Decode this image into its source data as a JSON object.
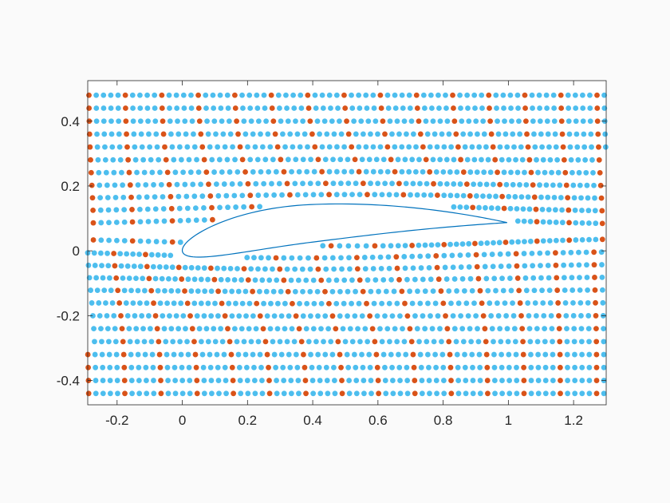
{
  "chart_data": {
    "type": "scatter",
    "title": "",
    "xlabel": "",
    "ylabel": "",
    "xlim": [
      -0.29,
      1.3
    ],
    "ylim": [
      -0.475,
      0.525
    ],
    "x_ticks": [
      -0.2,
      0,
      0.2,
      0.4,
      0.6,
      0.8,
      1,
      1.2
    ],
    "x_tick_labels": [
      "-0.2",
      "0",
      "0.2",
      "0.4",
      "0.6",
      "0.8",
      "1",
      "1.2"
    ],
    "y_ticks": [
      -0.4,
      -0.2,
      0,
      0.2,
      0.4
    ],
    "y_tick_labels": [
      "-0.4",
      "-0.2",
      "0",
      "0.2",
      "0.4"
    ],
    "grid": false,
    "legend": "none",
    "description_of_marks": "streakline particles around an airfoil; columns of particles spaced ~0.022 apart, every 5th column highlighted",
    "series": [
      {
        "color": "#4DBEEE",
        "role": "ordinary particles"
      },
      {
        "color": "#D95319",
        "role": "marked particle columns"
      }
    ],
    "particle_columns": {
      "x0_start": -0.285,
      "column_spacing": 0.0222,
      "count": 72,
      "highlight_every": 5,
      "y_values": [
        -0.44,
        -0.4,
        -0.36,
        -0.32,
        -0.28,
        -0.24,
        -0.2,
        -0.16,
        -0.12,
        -0.08,
        -0.04,
        0.0,
        0.04,
        0.08,
        0.12,
        0.16,
        0.2,
        0.24,
        0.28,
        0.32,
        0.36,
        0.4,
        0.44,
        0.48
      ]
    },
    "airfoil": {
      "color": "#0072BD",
      "chord": 1.0,
      "max_thickness": 0.12,
      "max_camber": 0.05,
      "angle_of_attack_deg": -5,
      "leading_edge": [
        0,
        0
      ],
      "trailing_edge": [
        1,
        0.087
      ]
    }
  }
}
